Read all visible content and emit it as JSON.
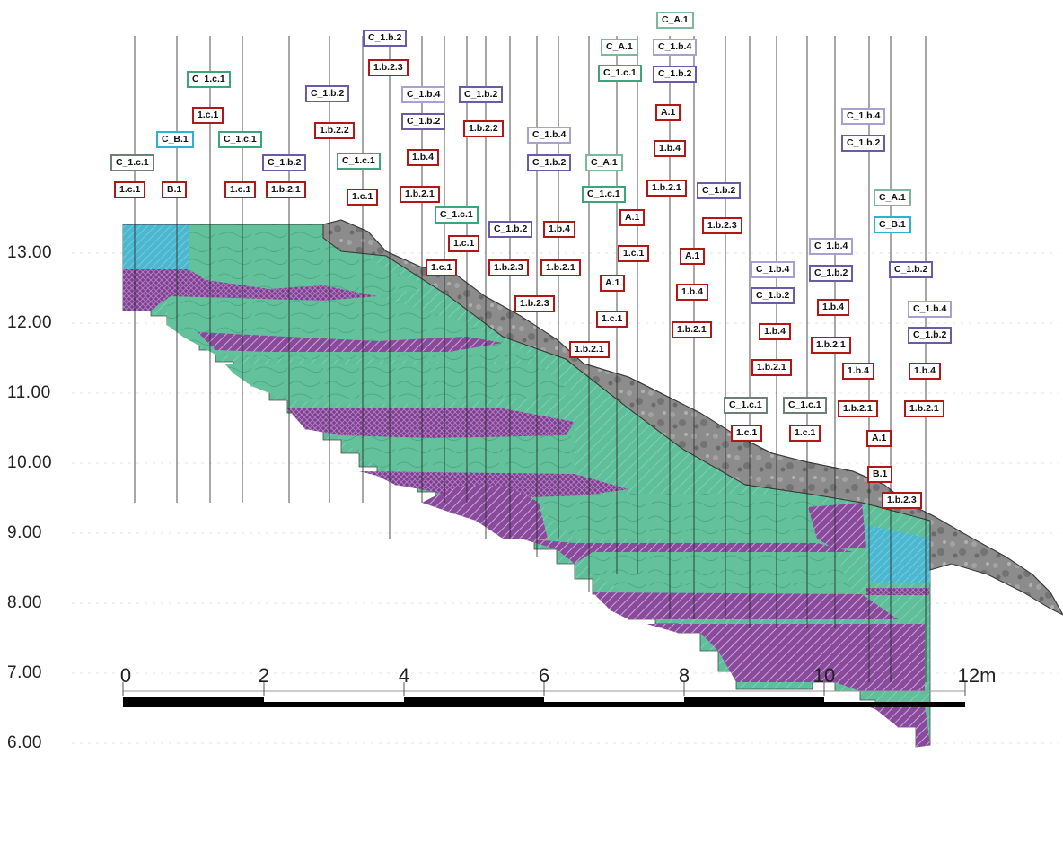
{
  "figure": {
    "y_axis_labels": [
      "13.00",
      "12.00",
      "11.00",
      "10.00",
      "9.00",
      "8.00",
      "7.00",
      "6.00"
    ],
    "scale_bar_labels": [
      "0",
      "2",
      "4",
      "6",
      "8",
      "10",
      "12m"
    ],
    "colors": {
      "unit_1c1_green": "#5fbf9a",
      "unit_1b2_purple": "#8a4a9c",
      "unit_B1_blue": "#4bb8d0",
      "unit_A1_rock": "#8c8c8c",
      "label_red": "#b01818",
      "label_purple": "#6a5aa8",
      "label_green": "#3aa67a",
      "label_blue": "#2bb3d6"
    }
  },
  "labels": [
    {
      "text": "C_1.c.1",
      "color": "gr"
    },
    {
      "text": "1.c.1",
      "color": "r"
    },
    {
      "text": "C_B.1",
      "color": "b"
    },
    {
      "text": "B.1",
      "color": "r"
    },
    {
      "text": "C_1.c.1",
      "color": "g"
    },
    {
      "text": "1.c.1",
      "color": "r"
    },
    {
      "text": "C_1.c.1",
      "color": "g"
    },
    {
      "text": "1.c.1",
      "color": "r"
    },
    {
      "text": "C_1.b.2",
      "color": "p"
    },
    {
      "text": "1.b.2.1",
      "color": "r"
    },
    {
      "text": "C_1.b.2",
      "color": "p"
    },
    {
      "text": "1.b.2.2",
      "color": "r"
    },
    {
      "text": "C_1.c.1",
      "color": "g"
    },
    {
      "text": "1.c.1",
      "color": "r"
    },
    {
      "text": "C_1.b.2",
      "color": "p"
    },
    {
      "text": "1.b.2.3",
      "color": "r"
    },
    {
      "text": "C_1.b.4",
      "color": "pl"
    },
    {
      "text": "C_1.b.2",
      "color": "p"
    },
    {
      "text": "1.b.4",
      "color": "r"
    },
    {
      "text": "1.b.2.1",
      "color": "r"
    },
    {
      "text": "1.c.1",
      "color": "r"
    },
    {
      "text": "C_1.c.1",
      "color": "g"
    },
    {
      "text": "1.c.1",
      "color": "r"
    },
    {
      "text": "C_1.b.2",
      "color": "p"
    },
    {
      "text": "1.b.2.2",
      "color": "r"
    },
    {
      "text": "C_1.b.2",
      "color": "p"
    },
    {
      "text": "1.b.2.3",
      "color": "r"
    },
    {
      "text": "C_1.b.4",
      "color": "pl"
    },
    {
      "text": "C_1.b.2",
      "color": "p"
    },
    {
      "text": "1.b.4",
      "color": "r"
    },
    {
      "text": "1.b.2.1",
      "color": "r"
    },
    {
      "text": "1.b.2.3",
      "color": "r"
    },
    {
      "text": "C_A.1",
      "color": "gl"
    },
    {
      "text": "C_1.c.1",
      "color": "g"
    },
    {
      "text": "A.1",
      "color": "r"
    },
    {
      "text": "1.c.1",
      "color": "r"
    },
    {
      "text": "1.b.2.1",
      "color": "r"
    },
    {
      "text": "A.1",
      "color": "r"
    },
    {
      "text": "1.c.1",
      "color": "r"
    },
    {
      "text": "C_A.1",
      "color": "gl"
    },
    {
      "text": "C_1.c.1",
      "color": "g"
    },
    {
      "text": "C_A.1",
      "color": "gl"
    },
    {
      "text": "C_1.b.4",
      "color": "pl"
    },
    {
      "text": "C_1.b.2",
      "color": "p"
    },
    {
      "text": "A.1",
      "color": "r"
    },
    {
      "text": "1.b.4",
      "color": "r"
    },
    {
      "text": "1.b.2.1",
      "color": "r"
    },
    {
      "text": "A.1",
      "color": "r"
    },
    {
      "text": "1.b.4",
      "color": "r"
    },
    {
      "text": "1.b.2.1",
      "color": "r"
    },
    {
      "text": "C_1.b.2",
      "color": "p"
    },
    {
      "text": "1.b.2.3",
      "color": "r"
    },
    {
      "text": "C_1.c.1",
      "color": "gr"
    },
    {
      "text": "1.c.1",
      "color": "r"
    },
    {
      "text": "C_1.b.4",
      "color": "pl"
    },
    {
      "text": "C_1.b.2",
      "color": "p"
    },
    {
      "text": "1.b.4",
      "color": "r"
    },
    {
      "text": "1.b.2.1",
      "color": "r"
    },
    {
      "text": "C_1.c.1",
      "color": "gr"
    },
    {
      "text": "1.c.1",
      "color": "r"
    },
    {
      "text": "C_1.b.4",
      "color": "pl"
    },
    {
      "text": "C_1.b.2",
      "color": "p"
    },
    {
      "text": "1.b.4",
      "color": "r"
    },
    {
      "text": "1.b.2.1",
      "color": "r"
    },
    {
      "text": "C_1.b.4",
      "color": "pl"
    },
    {
      "text": "C_1.b.2",
      "color": "p"
    },
    {
      "text": "1.b.4",
      "color": "r"
    },
    {
      "text": "1.b.2.1",
      "color": "r"
    },
    {
      "text": "C_A.1",
      "color": "gl"
    },
    {
      "text": "C_B.1",
      "color": "b"
    },
    {
      "text": "A.1",
      "color": "r"
    },
    {
      "text": "B.1",
      "color": "r"
    },
    {
      "text": "1.b.2.3",
      "color": "r"
    },
    {
      "text": "C_1.b.2",
      "color": "p"
    },
    {
      "text": "C_1.b.4",
      "color": "pl"
    },
    {
      "text": "C_1.b.2",
      "color": "p"
    },
    {
      "text": "1.b.4",
      "color": "r"
    },
    {
      "text": "1.b.2.1",
      "color": "r"
    }
  ]
}
